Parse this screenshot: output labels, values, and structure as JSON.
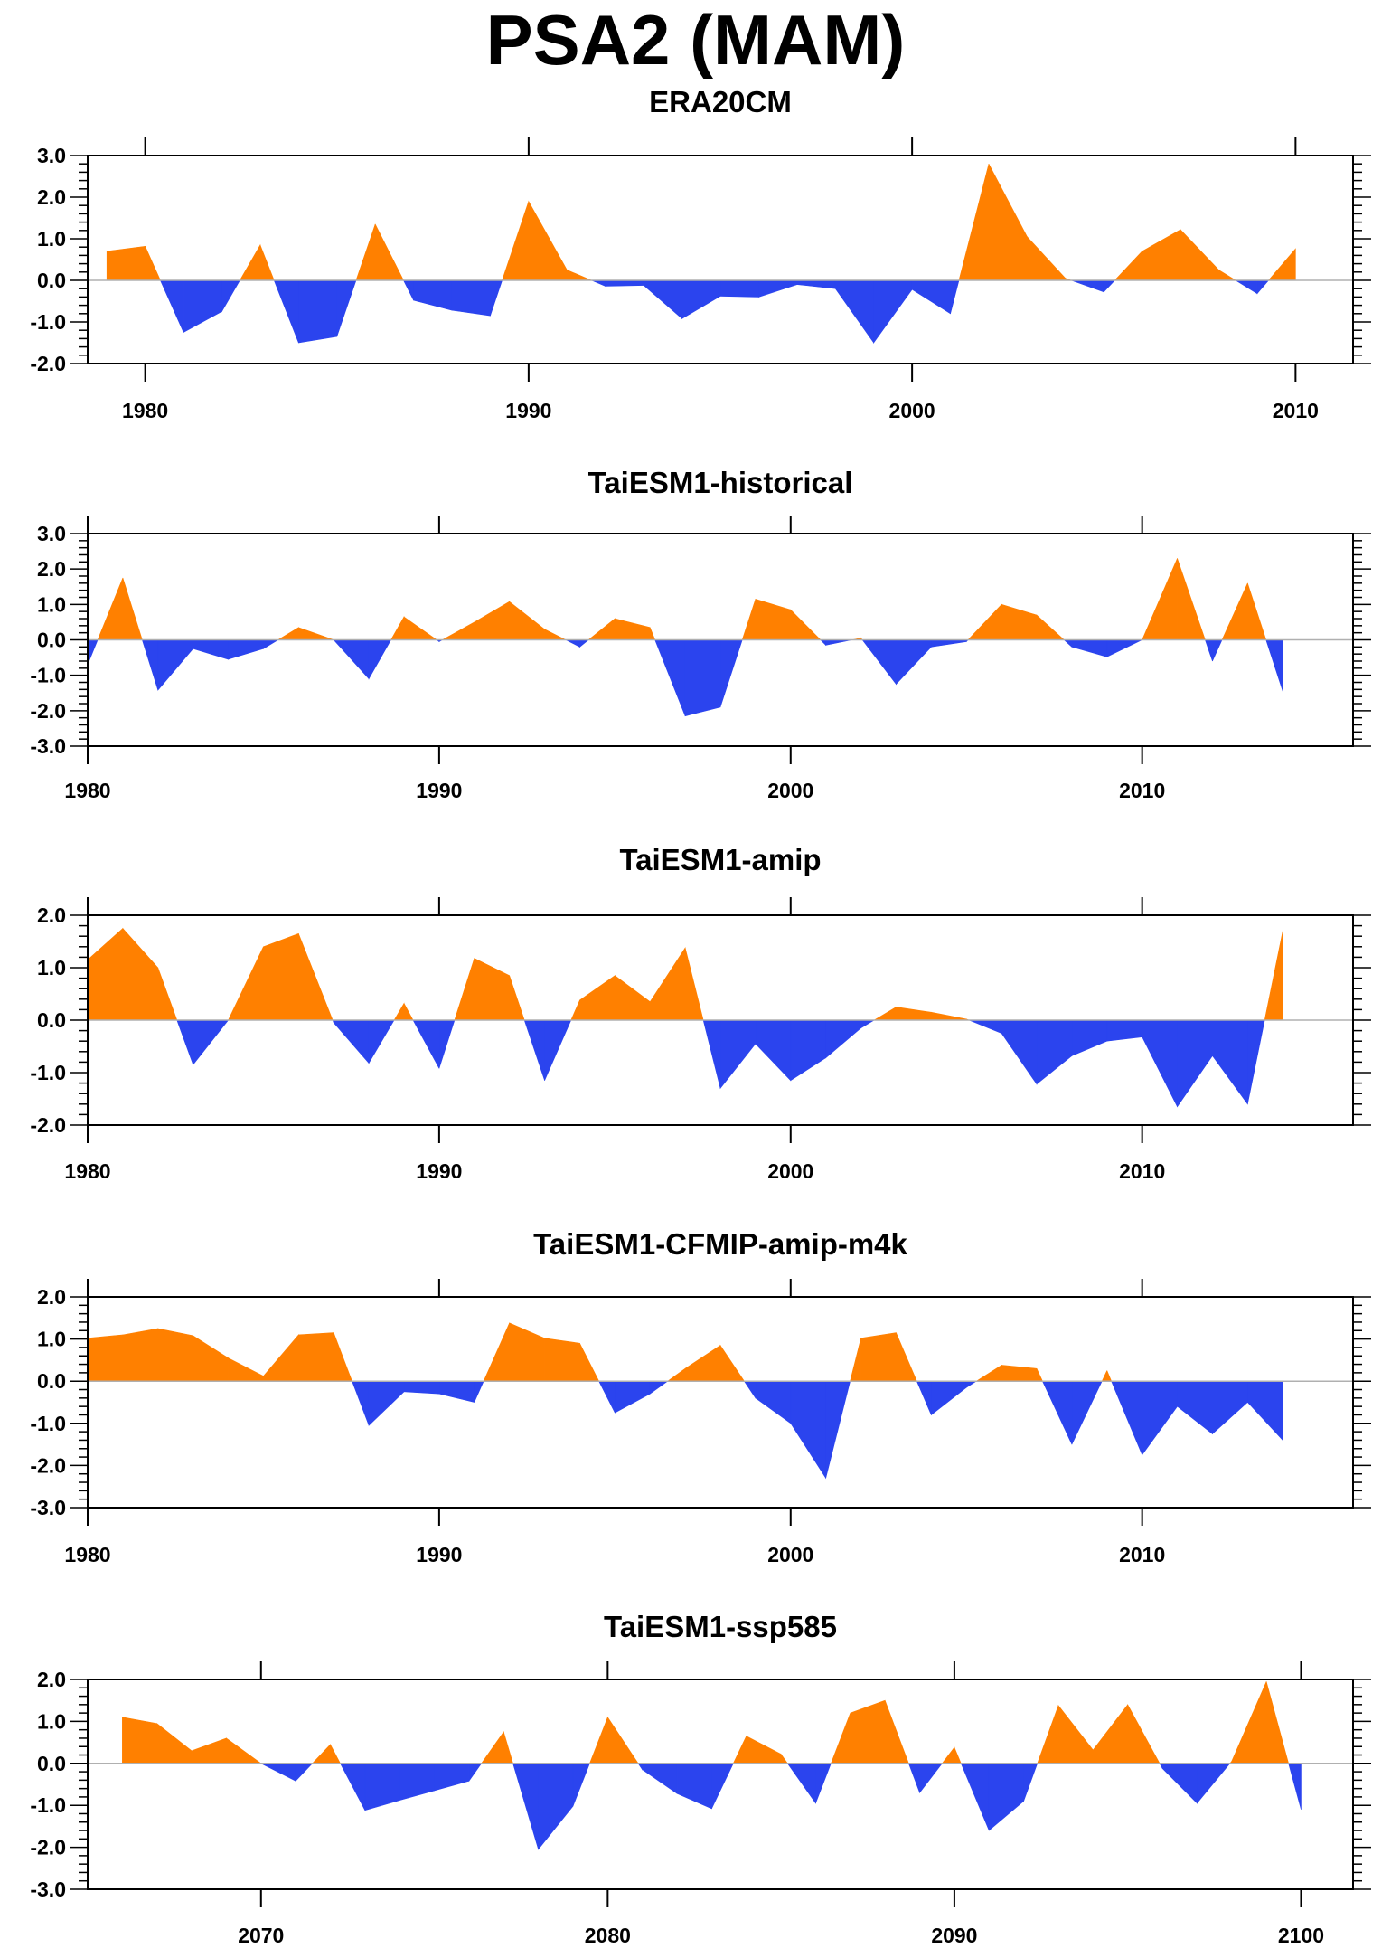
{
  "title": "PSA2 (MAM)",
  "colors": {
    "positive": "#ff8000",
    "negative": "#2b44ee",
    "axis": "#000000",
    "zero_line": "#b0b0b0"
  },
  "chart_data": [
    {
      "type": "area",
      "title": "ERA20CM",
      "xlim": [
        1978.5,
        2011.5
      ],
      "ylim": [
        -2.0,
        3.0
      ],
      "xticks": [
        1980,
        1990,
        2000,
        2010
      ],
      "yticks": [
        -2.0,
        -1.0,
        0.0,
        1.0,
        2.0,
        3.0
      ],
      "x_start": 1979,
      "values": [
        0.7,
        0.82,
        -1.25,
        -0.75,
        0.85,
        -1.5,
        -1.35,
        1.35,
        -0.48,
        -0.72,
        -0.85,
        1.9,
        0.25,
        -0.14,
        -0.12,
        -0.92,
        -0.38,
        -0.4,
        -0.1,
        -0.2,
        -1.5,
        -0.22,
        -0.8,
        2.8,
        1.05,
        0.05,
        -0.28,
        0.7,
        1.22,
        0.25,
        -0.32,
        0.76
      ],
      "grid": false
    },
    {
      "type": "area",
      "title": "TaiESM1-historical",
      "xlim": [
        1980,
        2016
      ],
      "ylim": [
        -3.0,
        3.0
      ],
      "xticks": [
        1980,
        1990,
        2000,
        2010
      ],
      "yticks": [
        -3.0,
        -2.0,
        -1.0,
        0.0,
        1.0,
        2.0,
        3.0
      ],
      "x_start": 1980,
      "values": [
        -0.7,
        1.75,
        -1.42,
        -0.25,
        -0.55,
        -0.25,
        0.35,
        0.0,
        -1.1,
        0.65,
        -0.05,
        0.5,
        1.08,
        0.3,
        -0.2,
        0.6,
        0.35,
        -2.15,
        -1.9,
        1.15,
        0.85,
        -0.15,
        0.05,
        -1.25,
        -0.2,
        -0.05,
        1.0,
        0.7,
        -0.2,
        -0.48,
        0.0,
        2.3,
        -0.6,
        1.6,
        -1.45
      ],
      "grid": false
    },
    {
      "type": "area",
      "title": "TaiESM1-amip",
      "xlim": [
        1980,
        2016
      ],
      "ylim": [
        -2.0,
        2.0
      ],
      "xticks": [
        1980,
        1990,
        2000,
        2010
      ],
      "yticks": [
        -2.0,
        -1.0,
        0.0,
        1.0,
        2.0
      ],
      "x_start": 1980,
      "values": [
        1.15,
        1.75,
        1.0,
        -0.85,
        0.0,
        1.4,
        1.65,
        -0.05,
        -0.82,
        0.32,
        -0.92,
        1.18,
        0.85,
        -1.15,
        0.38,
        0.85,
        0.35,
        1.38,
        -1.3,
        -0.45,
        -1.15,
        -0.72,
        -0.15,
        0.25,
        0.15,
        0.02,
        -0.25,
        -1.22,
        -0.68,
        -0.4,
        -0.32,
        -1.65,
        -0.68,
        -1.6,
        1.7
      ],
      "grid": false
    },
    {
      "type": "area",
      "title": "TaiESM1-CFMIP-amip-m4k",
      "xlim": [
        1980,
        2016
      ],
      "ylim": [
        -3.0,
        2.0
      ],
      "xticks": [
        1980,
        1990,
        2000,
        2010
      ],
      "yticks": [
        -3.0,
        -2.0,
        -1.0,
        0.0,
        1.0,
        2.0
      ],
      "x_start": 1980,
      "values": [
        1.02,
        1.1,
        1.25,
        1.08,
        0.55,
        0.12,
        1.1,
        1.15,
        -1.05,
        -0.25,
        -0.3,
        -0.5,
        1.38,
        1.02,
        0.9,
        -0.75,
        -0.3,
        0.3,
        0.85,
        -0.4,
        -1.0,
        -2.3,
        1.02,
        1.15,
        -0.8,
        -0.15,
        0.38,
        0.3,
        -1.5,
        0.25,
        -1.75,
        -0.6,
        -1.25,
        -0.5,
        -1.4
      ],
      "grid": false
    },
    {
      "type": "area",
      "title": "TaiESM1-ssp585",
      "xlim": [
        2065,
        2101.5
      ],
      "ylim": [
        -3.0,
        2.0
      ],
      "xticks": [
        2070,
        2080,
        2090,
        2100
      ],
      "yticks": [
        -3.0,
        -2.0,
        -1.0,
        0.0,
        1.0,
        2.0
      ],
      "x_start": 2066,
      "values": [
        1.1,
        0.95,
        0.3,
        0.6,
        0.0,
        -0.42,
        0.45,
        -1.12,
        -0.88,
        -0.65,
        -0.42,
        0.75,
        -2.05,
        -1.02,
        1.1,
        -0.15,
        -0.72,
        -1.08,
        0.65,
        0.22,
        -0.95,
        1.2,
        1.5,
        -0.7,
        0.38,
        -1.6,
        -0.9,
        1.38,
        0.32,
        1.4,
        -0.12,
        -0.95,
        0.05,
        1.95,
        -1.1
      ],
      "grid": false
    }
  ]
}
